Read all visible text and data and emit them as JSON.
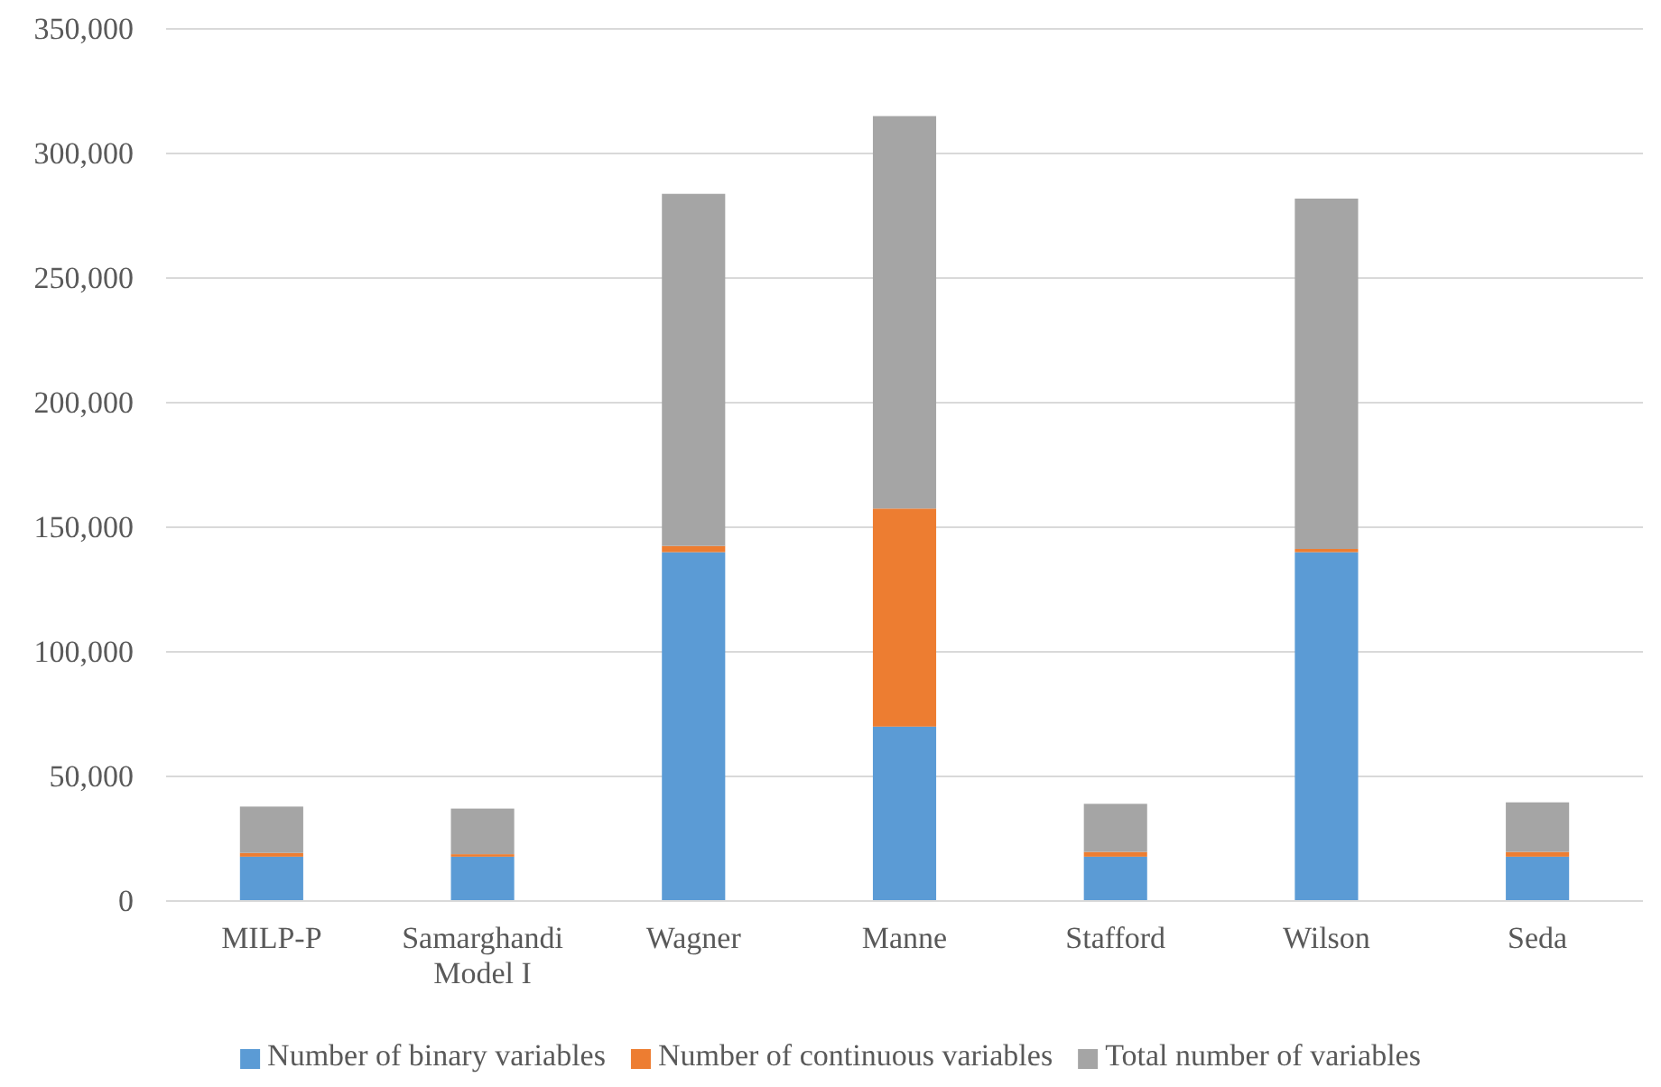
{
  "chart_data": {
    "type": "bar",
    "stacked": true,
    "categories": [
      "MILP-P",
      "Samarghandi Model I",
      "Wagner",
      "Manne",
      "Stafford",
      "Wilson",
      "Seda"
    ],
    "series": [
      {
        "name": "Number of binary variables",
        "color": "#5b9bd5",
        "values": [
          17800,
          17800,
          140000,
          70000,
          17800,
          140000,
          17800
        ]
      },
      {
        "name": "Number of continuous variables",
        "color": "#ed7d31",
        "values": [
          1500,
          1000,
          2500,
          87500,
          1900,
          1300,
          1900
        ]
      },
      {
        "name": "Total number of variables",
        "color": "#a5a5a5",
        "values": [
          18600,
          18300,
          141300,
          157500,
          19300,
          140600,
          19900
        ]
      }
    ],
    "ylim": [
      0,
      350000
    ],
    "yticks": [
      {
        "value": 0,
        "label": "0"
      },
      {
        "value": 50000,
        "label": "50,000"
      },
      {
        "value": 100000,
        "label": "100,000"
      },
      {
        "value": 150000,
        "label": "150,000"
      },
      {
        "value": 200000,
        "label": "200,000"
      },
      {
        "value": 250000,
        "label": "250,000"
      },
      {
        "value": 300000,
        "label": "300,000"
      },
      {
        "value": 350000,
        "label": "350,000"
      }
    ],
    "grid": "y",
    "legend": "bottom"
  }
}
